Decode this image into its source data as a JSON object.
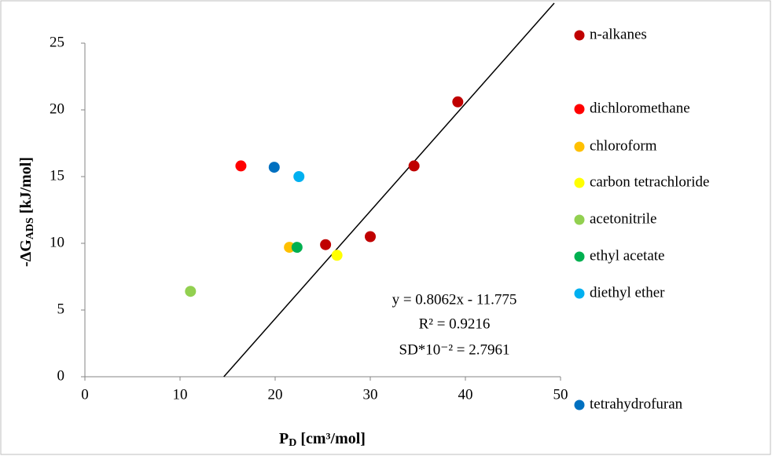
{
  "chart_data": {
    "type": "scatter",
    "x_label": {
      "main": "P",
      "sub": "D",
      "rest": " [cm³/mol]"
    },
    "y_label": {
      "main": "-ΔG",
      "sub": "ADS",
      "rest": " [kJ/mol]"
    },
    "xlim": [
      0,
      50
    ],
    "xticks": [
      0,
      10,
      20,
      30,
      40,
      50
    ],
    "ylim": [
      0,
      25
    ],
    "yticks": [
      0,
      5,
      10,
      15,
      20,
      25
    ],
    "grid": false,
    "legend": "right",
    "series": [
      {
        "name": "n-alkanes",
        "color": "#c00000",
        "x": [
          25.3,
          30.0,
          34.6,
          39.2
        ],
        "values": [
          9.9,
          10.5,
          15.8,
          20.6
        ]
      },
      {
        "name": "dichloromethane",
        "color": "#ff0000",
        "x": [
          16.4
        ],
        "values": [
          15.8
        ]
      },
      {
        "name": "chloroform",
        "color": "#ffc000",
        "x": [
          21.5
        ],
        "values": [
          9.7
        ]
      },
      {
        "name": "carbon tetrachloride",
        "color": "#ffff00",
        "x": [
          26.5
        ],
        "values": [
          9.1
        ]
      },
      {
        "name": "acetonitrile",
        "color": "#92d050",
        "x": [
          11.1
        ],
        "values": [
          6.4
        ]
      },
      {
        "name": "ethyl acetate",
        "color": "#00b050",
        "x": [
          22.3
        ],
        "values": [
          9.7
        ]
      },
      {
        "name": "diethyl ether",
        "color": "#00b0f0",
        "x": [
          22.5
        ],
        "values": [
          15.0
        ]
      },
      {
        "name": "tetrahydrofuran",
        "color": "#0070c0",
        "x": [
          19.9
        ],
        "values": [
          15.7
        ]
      }
    ],
    "trendline": {
      "slope": 0.8062,
      "intercept": -11.775,
      "color": "#000000",
      "annotations": [
        "y = 0.8062x - 11.775",
        "R² = 0.9216",
        "SD*10⁻² = 2.7961"
      ]
    }
  }
}
